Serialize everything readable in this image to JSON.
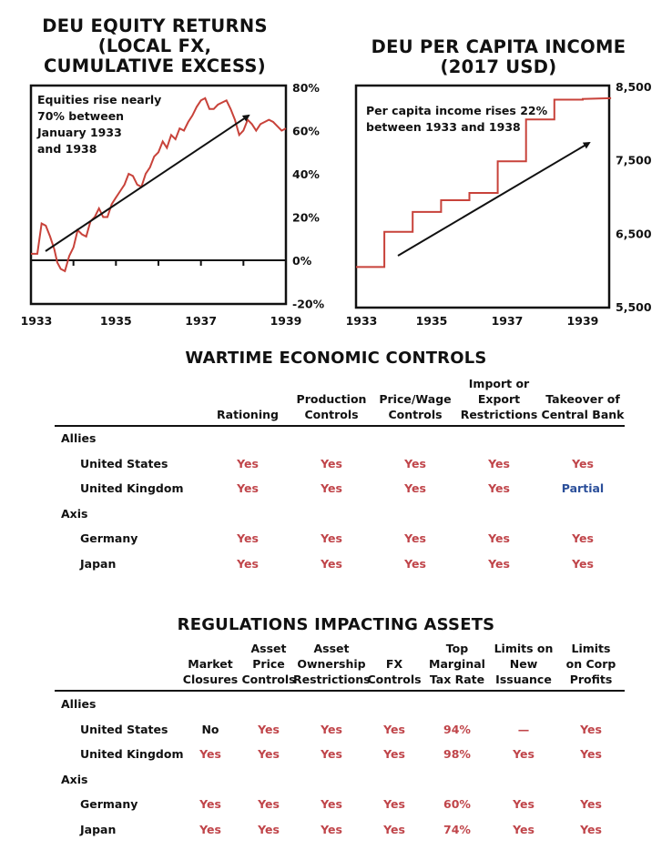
{
  "colors": {
    "line": "#c8423a",
    "yes": "#c0454a",
    "partial": "#2b4f9a",
    "no": "#111111",
    "text": "#111111"
  },
  "charts": {
    "equity": {
      "title_lines": [
        "DEU EQUITY RETURNS",
        "(LOCAL FX,",
        "CUMULATIVE EXCESS)"
      ],
      "annotation_lines": [
        "Equities rise nearly",
        "70% between",
        "January 1933",
        "and 1938"
      ],
      "x_ticks": [
        "1933",
        "1935",
        "1937",
        "1939"
      ],
      "y_ticks": [
        "80%",
        "60%",
        "40%",
        "20%",
        "0%",
        "-20%"
      ]
    },
    "income": {
      "title_lines": [
        "DEU PER CAPITA INCOME",
        "(2017 USD)"
      ],
      "annotation_lines": [
        "Per capita income rises 22%",
        "between 1933 and 1938"
      ],
      "x_ticks": [
        "1933",
        "1935",
        "1937",
        "1939"
      ],
      "y_ticks": [
        "8,500",
        "7,500",
        "6,500",
        "5,500"
      ]
    }
  },
  "chart_data": [
    {
      "type": "line",
      "title": "DEU EQUITY RETURNS (LOCAL FX, CUMULATIVE EXCESS)",
      "xlabel": "",
      "ylabel": "",
      "xlim": [
        1933.0,
        1939.0
      ],
      "ylim": [
        -20,
        80
      ],
      "x": [
        1933.0,
        1933.15,
        1933.25,
        1933.35,
        1933.45,
        1933.55,
        1933.62,
        1933.7,
        1933.8,
        1933.9,
        1934.0,
        1934.1,
        1934.2,
        1934.3,
        1934.4,
        1934.5,
        1934.6,
        1934.7,
        1934.8,
        1934.9,
        1935.0,
        1935.1,
        1935.2,
        1935.3,
        1935.4,
        1935.5,
        1935.6,
        1935.7,
        1935.8,
        1935.9,
        1936.0,
        1936.1,
        1936.2,
        1936.3,
        1936.4,
        1936.5,
        1936.6,
        1936.7,
        1936.8,
        1936.9,
        1937.0,
        1937.1,
        1937.2,
        1937.3,
        1937.4,
        1937.5,
        1937.6,
        1937.7,
        1937.8,
        1937.9,
        1938.0,
        1938.1,
        1938.2,
        1938.3,
        1938.4,
        1938.5,
        1938.6,
        1938.7,
        1938.8,
        1938.9,
        1939.0
      ],
      "values": [
        3,
        3,
        17,
        16,
        11,
        5,
        -1,
        -4,
        -5,
        2,
        6,
        14,
        12,
        11,
        18,
        20,
        24,
        20,
        20,
        26,
        29,
        32,
        35,
        40,
        39,
        35,
        34,
        40,
        43,
        48,
        50,
        55,
        52,
        58,
        56,
        61,
        60,
        64,
        67,
        71,
        74,
        75,
        70,
        70,
        72,
        73,
        74,
        70,
        65,
        58,
        60,
        65,
        63,
        60,
        63,
        64,
        65,
        64,
        62,
        60,
        61
      ],
      "annotation": "Equities rise nearly 70% between January 1933 and 1938"
    },
    {
      "type": "line",
      "title": "DEU PER CAPITA INCOME (2017 USD)",
      "xlabel": "",
      "ylabel": "",
      "xlim": [
        1933,
        1939.7
      ],
      "ylim": [
        5500,
        8500
      ],
      "x": [
        1933.0,
        1933.75,
        1933.75,
        1934.5,
        1934.5,
        1935.25,
        1935.25,
        1936.0,
        1936.0,
        1936.75,
        1936.75,
        1937.5,
        1937.5,
        1938.25,
        1938.25,
        1939.0,
        1939.0,
        1939.75
      ],
      "values": [
        6040,
        6040,
        6520,
        6520,
        6790,
        6790,
        6950,
        6950,
        7050,
        7050,
        7480,
        7480,
        8050,
        8050,
        8320,
        8320,
        8330,
        8340
      ],
      "series_name_note": "",
      "annotation": "Per capita income rises 22% between 1933 and 1938"
    }
  ],
  "wartime": {
    "title": "WARTIME ECONOMIC CONTROLS",
    "columns": [
      [
        "Rationing"
      ],
      [
        "Production",
        "Controls"
      ],
      [
        "Price/Wage",
        "Controls"
      ],
      [
        "Import or",
        "Export",
        "Restrictions"
      ],
      [
        "Takeover of",
        "Central Bank"
      ]
    ],
    "groups": [
      {
        "name": "Allies",
        "rows": [
          {
            "label": "United States",
            "cells": [
              "Yes",
              "Yes",
              "Yes",
              "Yes",
              "Yes"
            ],
            "styles": [
              "yes",
              "yes",
              "yes",
              "yes",
              "yes"
            ]
          },
          {
            "label": "United Kingdom",
            "cells": [
              "Yes",
              "Yes",
              "Yes",
              "Yes",
              "Partial"
            ],
            "styles": [
              "yes",
              "yes",
              "yes",
              "yes",
              "partial"
            ]
          }
        ]
      },
      {
        "name": "Axis",
        "rows": [
          {
            "label": "Germany",
            "cells": [
              "Yes",
              "Yes",
              "Yes",
              "Yes",
              "Yes"
            ],
            "styles": [
              "yes",
              "yes",
              "yes",
              "yes",
              "yes"
            ]
          },
          {
            "label": "Japan",
            "cells": [
              "Yes",
              "Yes",
              "Yes",
              "Yes",
              "Yes"
            ],
            "styles": [
              "yes",
              "yes",
              "yes",
              "yes",
              "yes"
            ]
          }
        ]
      }
    ]
  },
  "regulations": {
    "title": "REGULATIONS IMPACTING ASSETS",
    "columns": [
      [
        "Market",
        "Closures"
      ],
      [
        "Asset",
        "Price",
        "Controls"
      ],
      [
        "Asset",
        "Ownership",
        "Restrictions"
      ],
      [
        "FX",
        "Controls"
      ],
      [
        "Top",
        "Marginal",
        "Tax Rate"
      ],
      [
        "Limits on",
        "New",
        "Issuance"
      ],
      [
        "Limits",
        "on Corp",
        "Profits"
      ]
    ],
    "groups": [
      {
        "name": "Allies",
        "rows": [
          {
            "label": "United States",
            "cells": [
              "No",
              "Yes",
              "Yes",
              "Yes",
              "94%",
              "—",
              "Yes"
            ],
            "styles": [
              "no",
              "yes",
              "yes",
              "yes",
              "yes",
              "yes",
              "yes"
            ]
          },
          {
            "label": "United Kingdom",
            "cells": [
              "Yes",
              "Yes",
              "Yes",
              "Yes",
              "98%",
              "Yes",
              "Yes"
            ],
            "styles": [
              "yes",
              "yes",
              "yes",
              "yes",
              "yes",
              "yes",
              "yes"
            ]
          }
        ]
      },
      {
        "name": "Axis",
        "rows": [
          {
            "label": "Germany",
            "cells": [
              "Yes",
              "Yes",
              "Yes",
              "Yes",
              "60%",
              "Yes",
              "Yes"
            ],
            "styles": [
              "yes",
              "yes",
              "yes",
              "yes",
              "yes",
              "yes",
              "yes"
            ]
          },
          {
            "label": "Japan",
            "cells": [
              "Yes",
              "Yes",
              "Yes",
              "Yes",
              "74%",
              "Yes",
              "Yes"
            ],
            "styles": [
              "yes",
              "yes",
              "yes",
              "yes",
              "yes",
              "yes",
              "yes"
            ]
          }
        ]
      }
    ]
  }
}
